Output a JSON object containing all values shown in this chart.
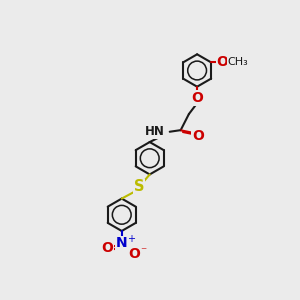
{
  "bg_color": "#ebebeb",
  "bond_color": "#1a1a1a",
  "O_color": "#cc0000",
  "N_color": "#0000cc",
  "S_color": "#bbbb00",
  "lw": 1.5,
  "fs": 8.5,
  "ring_r": 0.55,
  "figsize": [
    3.0,
    3.0
  ],
  "dpi": 100,
  "xlim": [
    0,
    10
  ],
  "ylim": [
    0,
    10
  ]
}
